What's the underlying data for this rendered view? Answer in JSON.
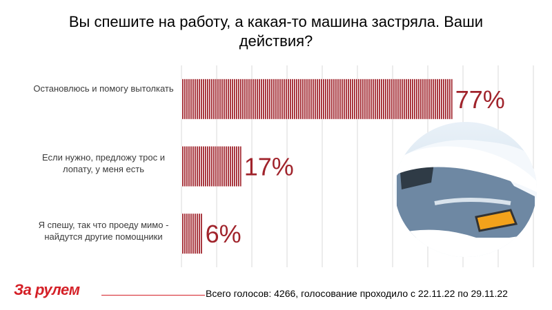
{
  "title": "Вы спешите на работу, а какая-то машина застряла. Ваши действия?",
  "footer": {
    "logo": "За рулем",
    "note": "Всего голосов: 4266, голосование проходило с 22.11.22 по 29.11.22"
  },
  "colors": {
    "bar": "#a0232b",
    "label": "#a0232b",
    "accent": "#d41f26"
  },
  "chart_data": {
    "type": "bar",
    "orientation": "horizontal",
    "categories": [
      "Остановлюсь и помогу вытолкать",
      "Если нужно, предложу трос и лопату, у меня есть",
      "Я спешу, так что проеду мимо - найдутся другие помощники"
    ],
    "values": [
      77,
      17,
      6
    ],
    "value_labels": [
      "77%",
      "17%",
      "6%"
    ],
    "xlim": [
      0,
      100
    ],
    "grid": true
  }
}
